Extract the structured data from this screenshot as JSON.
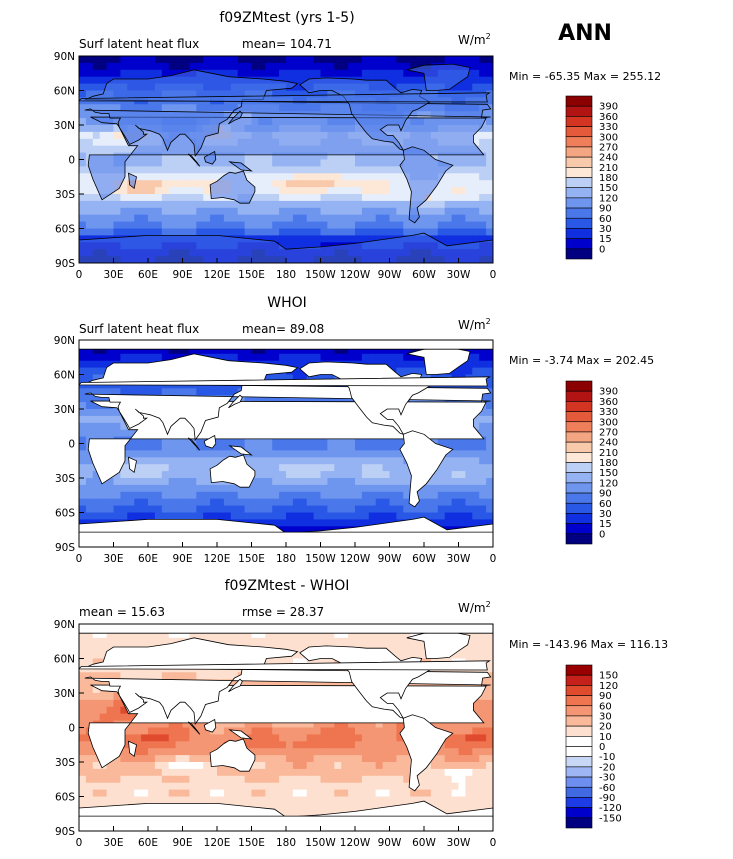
{
  "season": "ANN",
  "colors": {
    "ocean_default": "#ffffff",
    "land": "#ffffff",
    "coast": "#000000",
    "flux_scale": [
      "#000080",
      "#0000cd",
      "#0f2fe0",
      "#2a58e6",
      "#4a78ea",
      "#6e96ef",
      "#95b3f2",
      "#bcd0f6",
      "#e6eefb",
      "#fde7d6",
      "#f9c9ab",
      "#f4a582",
      "#ee7f5a",
      "#e55a3a",
      "#d33522",
      "#b21414",
      "#8b0000"
    ],
    "diff_scale": [
      "#000080",
      "#0000cd",
      "#1e3ce6",
      "#4169e1",
      "#6e8ef0",
      "#9fb6f4",
      "#c9d7f7",
      "#ffffff",
      "#fde0d0",
      "#f9b99a",
      "#f49673",
      "#ee7550",
      "#e04a2d",
      "#c5201a",
      "#990000"
    ]
  },
  "chart_data": [
    {
      "type": "heatmap",
      "id": "model",
      "title": "f09ZMtest (yrs 1-5)",
      "left_label": "Surf latent heat flux",
      "center_label": "mean= 104.71",
      "units": "W/m",
      "units_sup": "2",
      "minmax": "Min = -65.35 Max = 255.12",
      "x_ticks": [
        "0",
        "30E",
        "60E",
        "90E",
        "120E",
        "150E",
        "180",
        "150W",
        "120W",
        "90W",
        "60W",
        "30W",
        "0"
      ],
      "y_ticks": [
        "90N",
        "60N",
        "30N",
        "0",
        "30S",
        "60S",
        "90S"
      ],
      "xlim": [
        0,
        360
      ],
      "ylim": [
        -90,
        90
      ],
      "levels": [
        "390",
        "360",
        "330",
        "300",
        "270",
        "240",
        "210",
        "180",
        "150",
        "120",
        "90",
        "60",
        "30",
        "15",
        "0"
      ],
      "scale": "flux",
      "field": {
        "base": [
          [
            -90,
            0
          ],
          [
            -80,
            1
          ],
          [
            -70,
            2
          ],
          [
            -60,
            4
          ],
          [
            -50,
            5
          ],
          [
            -40,
            6
          ],
          [
            -30,
            8
          ],
          [
            -20,
            8
          ],
          [
            -10,
            7
          ],
          [
            0,
            6
          ],
          [
            10,
            7
          ],
          [
            20,
            8
          ],
          [
            30,
            6
          ],
          [
            40,
            5
          ],
          [
            50,
            4
          ],
          [
            60,
            3
          ],
          [
            70,
            2
          ],
          [
            80,
            1
          ],
          [
            90,
            0
          ]
        ],
        "blobs": [
          [
            60,
            -22,
            30,
            8,
            2
          ],
          [
            210,
            -20,
            40,
            8,
            2
          ],
          [
            110,
            -20,
            16,
            6,
            1
          ],
          [
            45,
            22,
            14,
            6,
            1
          ],
          [
            30,
            18,
            10,
            5,
            1
          ],
          [
            143,
            35,
            12,
            5,
            2
          ],
          [
            300,
            40,
            14,
            5,
            2
          ],
          [
            300,
            -35,
            14,
            5,
            2
          ],
          [
            120,
            25,
            12,
            6,
            2
          ]
        ]
      }
    },
    {
      "type": "heatmap",
      "id": "obs",
      "title": "WHOI",
      "left_label": "Surf latent heat flux",
      "center_label": "mean= 89.08",
      "units": "W/m",
      "units_sup": "2",
      "minmax": "Min = -3.74 Max = 202.45",
      "x_ticks": [
        "0",
        "30E",
        "60E",
        "90E",
        "120E",
        "150E",
        "180",
        "150W",
        "120W",
        "90W",
        "60W",
        "30W",
        "0"
      ],
      "y_ticks": [
        "90N",
        "60N",
        "30N",
        "0",
        "30S",
        "60S",
        "90S"
      ],
      "xlim": [
        0,
        360
      ],
      "ylim": [
        -90,
        90
      ],
      "levels": [
        "390",
        "360",
        "330",
        "300",
        "270",
        "240",
        "210",
        "180",
        "150",
        "120",
        "90",
        "60",
        "30",
        "15",
        "0"
      ],
      "scale": "flux",
      "field": {
        "base": [
          [
            -90,
            0
          ],
          [
            -80,
            0
          ],
          [
            -70,
            2
          ],
          [
            -60,
            3
          ],
          [
            -50,
            4
          ],
          [
            -40,
            5
          ],
          [
            -30,
            6
          ],
          [
            -20,
            6
          ],
          [
            -10,
            5
          ],
          [
            0,
            4
          ],
          [
            10,
            5
          ],
          [
            20,
            6
          ],
          [
            30,
            5
          ],
          [
            40,
            4
          ],
          [
            50,
            3
          ],
          [
            60,
            3
          ],
          [
            70,
            2
          ],
          [
            80,
            1
          ],
          [
            90,
            0
          ]
        ],
        "blobs": [
          [
            300,
            35,
            14,
            6,
            2
          ],
          [
            143,
            33,
            12,
            5,
            2
          ],
          [
            60,
            -22,
            30,
            8,
            1
          ],
          [
            210,
            -22,
            40,
            8,
            1
          ],
          [
            300,
            -33,
            14,
            5,
            1
          ]
        ]
      }
    },
    {
      "type": "heatmap",
      "id": "diff",
      "title": "f09ZMtest - WHOI",
      "left_label": "mean =  15.63",
      "center_label": "rmse =  28.37",
      "units": "W/m",
      "units_sup": "2",
      "minmax": "Min = -143.96 Max = 116.13",
      "x_ticks": [
        "0",
        "30E",
        "60E",
        "90E",
        "120E",
        "150E",
        "180",
        "150W",
        "120W",
        "90W",
        "60W",
        "30W",
        "0"
      ],
      "y_ticks": [
        "90N",
        "60N",
        "30N",
        "0",
        "30S",
        "60S",
        "90S"
      ],
      "xlim": [
        0,
        360
      ],
      "ylim": [
        -90,
        90
      ],
      "levels": [
        "150",
        "120",
        "90",
        "60",
        "30",
        "20",
        "10",
        "0",
        "-10",
        "-20",
        "-30",
        "-60",
        "-90",
        "-120",
        "-150"
      ],
      "scale": "diff",
      "field": {
        "base": [
          [
            -90,
            7
          ],
          [
            -80,
            8
          ],
          [
            -70,
            8
          ],
          [
            -60,
            8
          ],
          [
            -50,
            8
          ],
          [
            -40,
            9
          ],
          [
            -30,
            9
          ],
          [
            -20,
            10
          ],
          [
            -10,
            10
          ],
          [
            0,
            10
          ],
          [
            10,
            10
          ],
          [
            20,
            10
          ],
          [
            30,
            9
          ],
          [
            40,
            9
          ],
          [
            50,
            8
          ],
          [
            60,
            8
          ],
          [
            70,
            8
          ],
          [
            80,
            8
          ],
          [
            90,
            7
          ]
        ],
        "blobs": [
          [
            45,
            15,
            18,
            10,
            2
          ],
          [
            60,
            -10,
            25,
            8,
            2
          ],
          [
            150,
            -15,
            25,
            7,
            1
          ],
          [
            220,
            -10,
            40,
            8,
            1
          ],
          [
            340,
            -10,
            20,
            8,
            2
          ],
          [
            160,
            10,
            40,
            6,
            -3
          ],
          [
            230,
            25,
            40,
            6,
            -2
          ],
          [
            100,
            -35,
            30,
            6,
            -2
          ],
          [
            330,
            -40,
            25,
            6,
            -2
          ],
          [
            285,
            -5,
            10,
            8,
            2
          ]
        ]
      }
    }
  ]
}
